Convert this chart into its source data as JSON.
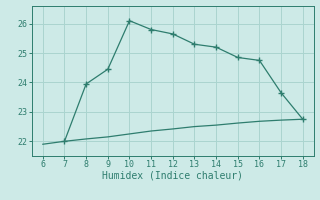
{
  "upper_x": [
    7,
    8,
    9,
    10,
    11,
    12,
    13,
    14,
    15,
    16,
    17,
    18
  ],
  "upper_y": [
    22.0,
    23.95,
    24.45,
    26.1,
    25.8,
    25.65,
    25.3,
    25.2,
    24.85,
    24.75,
    23.65,
    22.75
  ],
  "lower_x": [
    6,
    7,
    8,
    9,
    10,
    11,
    12,
    13,
    14,
    15,
    16,
    17,
    18
  ],
  "lower_y": [
    21.9,
    22.0,
    22.08,
    22.15,
    22.25,
    22.35,
    22.42,
    22.5,
    22.55,
    22.62,
    22.68,
    22.72,
    22.75
  ],
  "line_color": "#2e7d6e",
  "bg_color": "#cdeae7",
  "grid_color": "#aad4cf",
  "xlabel": "Humidex (Indice chaleur)",
  "xlim": [
    5.5,
    18.5
  ],
  "ylim": [
    21.5,
    26.6
  ],
  "xticks": [
    6,
    7,
    8,
    9,
    10,
    11,
    12,
    13,
    14,
    15,
    16,
    17,
    18
  ],
  "yticks": [
    22,
    23,
    24,
    25,
    26
  ]
}
